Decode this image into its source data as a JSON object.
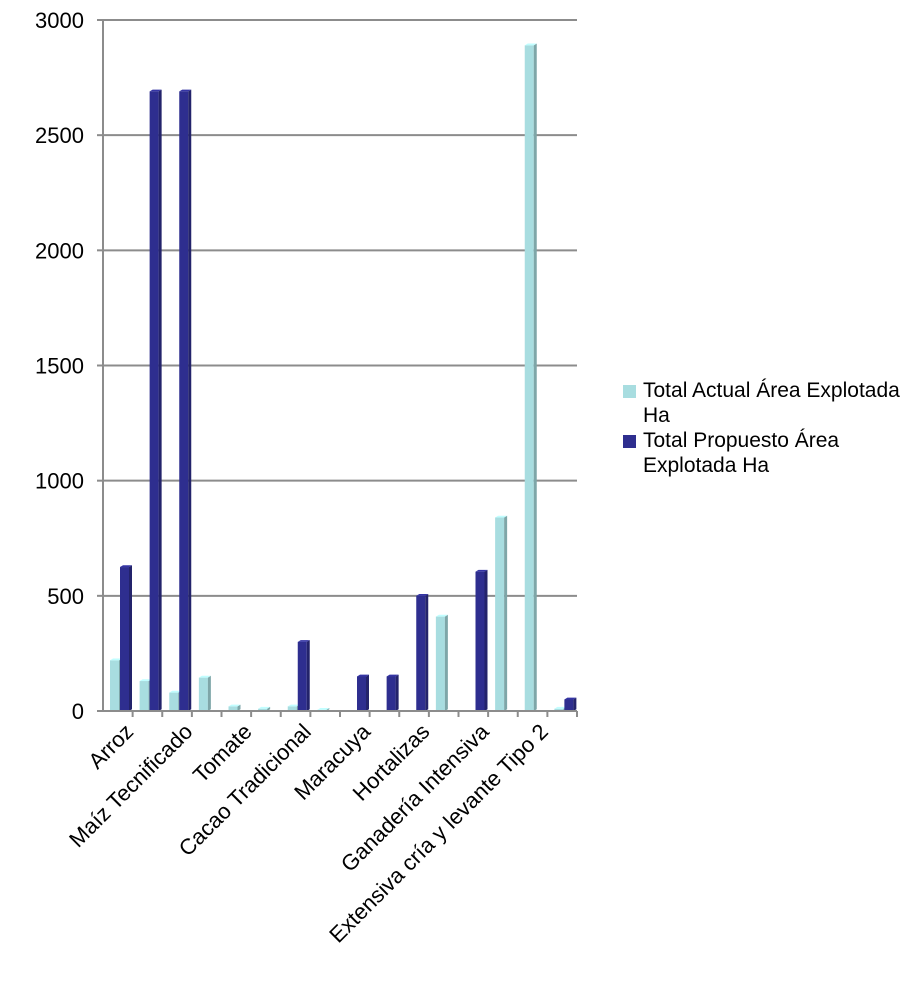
{
  "chart_data": {
    "type": "bar",
    "ylim": [
      0,
      3000
    ],
    "yticks": [
      0,
      500,
      1000,
      1500,
      2000,
      2500,
      3000
    ],
    "grid": true,
    "legend_position": "right",
    "category_labels": [
      "Arroz",
      "Maíz Tecnificado",
      "Tomate",
      "Cacao Tradicional",
      "Maracuya",
      "Hortalizas",
      "Ganadería Intensiva",
      "Extensiva cría y levante Tipo 2"
    ],
    "num_slots": 16,
    "series": [
      {
        "name": "Total Actual Área Explotada Ha",
        "color": "#a8dde0",
        "values": [
          220,
          130,
          80,
          145,
          20,
          10,
          20,
          5,
          0,
          0,
          0,
          410,
          0,
          840,
          2890,
          10
        ]
      },
      {
        "name": "Total Propuesto Área Explotada Ha",
        "color": "#2e2e8f",
        "values": [
          625,
          2690,
          2690,
          0,
          0,
          0,
          300,
          0,
          150,
          150,
          500,
          0,
          605,
          0,
          0,
          50
        ]
      }
    ]
  }
}
